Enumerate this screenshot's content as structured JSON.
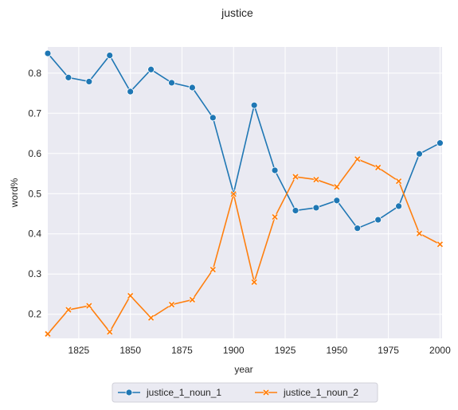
{
  "chart_data": {
    "type": "line",
    "title": "justice",
    "xlabel": "year",
    "ylabel": "word%",
    "xlim": [
      1810,
      2001
    ],
    "ylim": [
      0.14,
      0.865
    ],
    "xticks": [
      1825,
      1850,
      1875,
      1900,
      1925,
      1950,
      1975,
      2000
    ],
    "yticks": [
      0.2,
      0.3,
      0.4,
      0.5,
      0.6,
      0.7,
      0.8
    ],
    "xtick_labels": [
      "1825",
      "1850",
      "1875",
      "1900",
      "1925",
      "1950",
      "1975",
      "2000"
    ],
    "ytick_labels": [
      "0.2",
      "0.3",
      "0.4",
      "0.5",
      "0.6",
      "0.7",
      "0.8"
    ],
    "grid": true,
    "legend_position": "bottom-center",
    "x": [
      1810,
      1820,
      1830,
      1840,
      1850,
      1860,
      1870,
      1880,
      1890,
      1900,
      1910,
      1920,
      1930,
      1940,
      1950,
      1960,
      1970,
      1980,
      1990,
      2000
    ],
    "series": [
      {
        "name": "justice_1_noun_1",
        "color": "#1f77b4",
        "marker": "circle",
        "values": [
          0.849,
          0.789,
          0.779,
          0.844,
          0.754,
          0.809,
          0.776,
          0.764,
          0.689,
          0.501,
          0.72,
          0.558,
          0.458,
          0.465,
          0.483,
          0.414,
          0.435,
          0.469,
          0.599,
          0.626
        ]
      },
      {
        "name": "justice_1_noun_2",
        "color": "#ff7f0e",
        "marker": "x",
        "values": [
          0.151,
          0.211,
          0.221,
          0.156,
          0.246,
          0.191,
          0.224,
          0.236,
          0.311,
          0.499,
          0.28,
          0.442,
          0.542,
          0.535,
          0.517,
          0.586,
          0.565,
          0.531,
          0.401,
          0.374
        ]
      }
    ]
  }
}
